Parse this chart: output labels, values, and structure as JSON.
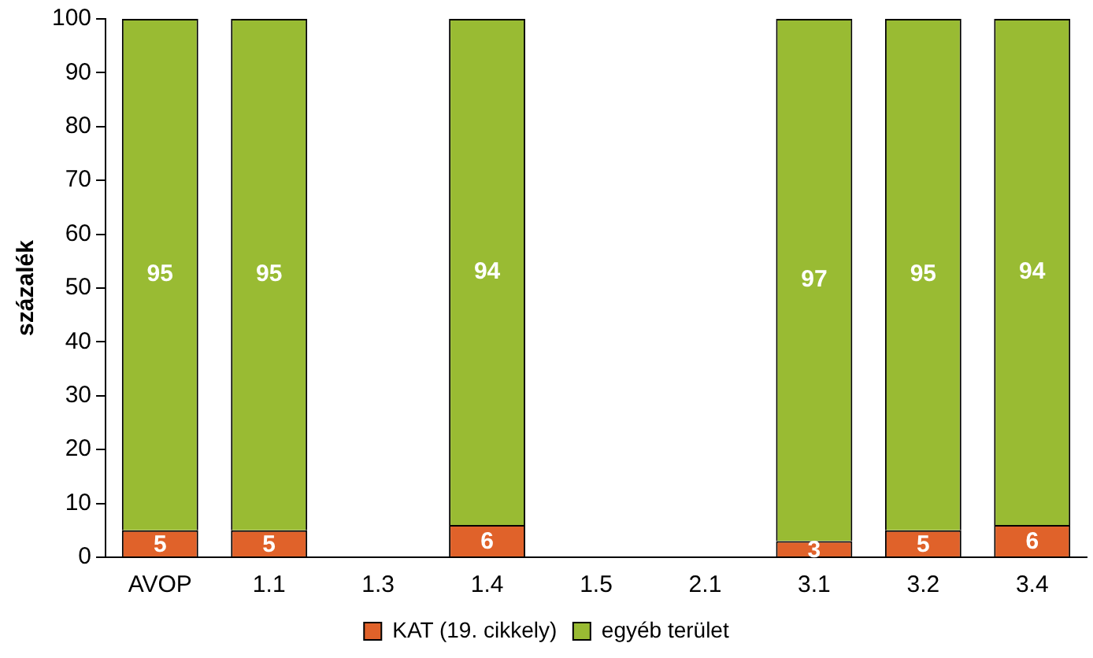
{
  "chart_data": {
    "type": "bar",
    "stacked": true,
    "ylabel": "százalék",
    "categories": [
      "AVOP",
      "1.1",
      "1.3",
      "1.4",
      "1.5",
      "2.1",
      "3.1",
      "3.2",
      "3.4"
    ],
    "series": [
      {
        "name": "KAT (19. cikkely)",
        "color": "#e0622a",
        "values": [
          5,
          5,
          null,
          6,
          null,
          null,
          3,
          5,
          6
        ]
      },
      {
        "name": "egyéb terület",
        "color": "#99bb33",
        "values": [
          95,
          95,
          null,
          94,
          null,
          null,
          97,
          95,
          94
        ]
      }
    ],
    "ylim": [
      0,
      100
    ],
    "yticks": [
      0,
      10,
      20,
      30,
      40,
      50,
      60,
      70,
      80,
      90,
      100
    ],
    "grid": false,
    "legend": "bottom",
    "data_labels": true
  }
}
